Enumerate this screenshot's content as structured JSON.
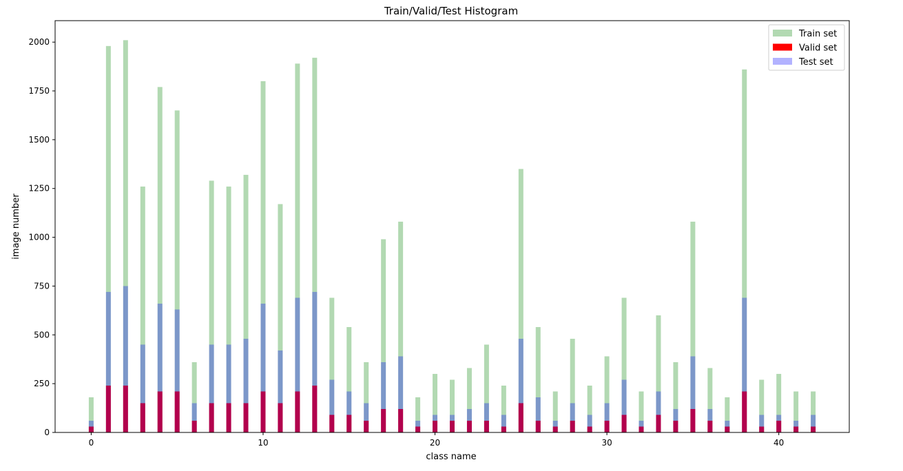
{
  "chart_data": {
    "type": "bar",
    "title": "Train/Valid/Test Histogram",
    "xlabel": "class name",
    "ylabel": "image number",
    "xlim": [
      -2.1,
      44.1
    ],
    "ylim": [
      0,
      2110
    ],
    "xticks": [
      0,
      10,
      20,
      30,
      40
    ],
    "yticks": [
      0,
      250,
      500,
      750,
      1000,
      1250,
      1500,
      1750,
      2000
    ],
    "grid": false,
    "legend_position": "top-right",
    "categories": [
      0,
      1,
      2,
      3,
      4,
      5,
      6,
      7,
      8,
      9,
      10,
      11,
      12,
      13,
      14,
      15,
      16,
      17,
      18,
      19,
      20,
      21,
      22,
      23,
      24,
      25,
      26,
      27,
      28,
      29,
      30,
      31,
      32,
      33,
      34,
      35,
      36,
      37,
      38,
      39,
      40,
      41,
      42
    ],
    "series": [
      {
        "name": "Train set",
        "color": "#008000",
        "opacity": 0.3,
        "values": [
          180,
          1980,
          2010,
          1260,
          1770,
          1650,
          360,
          1290,
          1260,
          1320,
          1800,
          1170,
          1890,
          1920,
          690,
          540,
          360,
          990,
          1080,
          180,
          300,
          270,
          330,
          450,
          240,
          1350,
          540,
          210,
          480,
          240,
          390,
          690,
          210,
          600,
          360,
          1080,
          330,
          180,
          1860,
          270,
          300,
          210,
          210
        ]
      },
      {
        "name": "Valid set",
        "color": "#ff0000",
        "opacity": 1.0,
        "values": [
          30,
          240,
          240,
          150,
          210,
          210,
          60,
          150,
          150,
          150,
          210,
          150,
          210,
          240,
          90,
          90,
          60,
          120,
          120,
          30,
          60,
          60,
          60,
          60,
          30,
          150,
          60,
          30,
          60,
          30,
          60,
          90,
          30,
          90,
          60,
          120,
          60,
          30,
          210,
          30,
          60,
          30,
          30
        ]
      },
      {
        "name": "Test set",
        "color": "#0000ff",
        "opacity": 0.3,
        "values": [
          60,
          720,
          750,
          450,
          660,
          630,
          150,
          450,
          450,
          480,
          660,
          420,
          690,
          720,
          270,
          210,
          150,
          360,
          390,
          60,
          90,
          90,
          120,
          150,
          90,
          480,
          180,
          60,
          150,
          90,
          150,
          270,
          60,
          210,
          120,
          390,
          120,
          60,
          690,
          90,
          90,
          60,
          90
        ]
      }
    ]
  }
}
